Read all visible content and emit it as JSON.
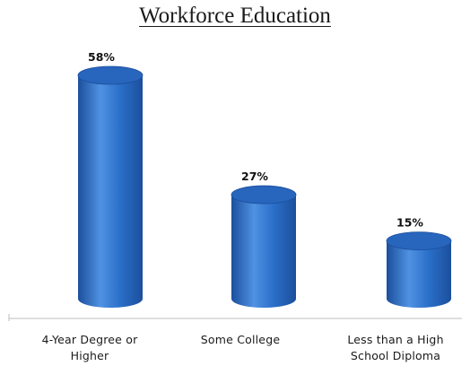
{
  "chart_data": {
    "type": "bar",
    "title": "Workforce Education",
    "categories": [
      "4-Year Degree or Higher",
      "Some College",
      "Less than a High School Diploma"
    ],
    "category_lines": [
      [
        "4-Year Degree or",
        "Higher"
      ],
      [
        "Some College"
      ],
      [
        "Less than a High",
        "School Diploma"
      ]
    ],
    "values": [
      58,
      27,
      15
    ],
    "data_labels": [
      "58%",
      "27%",
      "15%"
    ],
    "ylim": [
      0,
      58
    ],
    "grid": false,
    "legend": "none",
    "bar_style": "3d-cylinder",
    "colors": {
      "bar_body": "#2a6fc9",
      "bar_dark": "#1c4f9c",
      "bar_light": "#4f92e3",
      "bar_top": "#2865bd",
      "axis": "#bdbdbd"
    }
  }
}
